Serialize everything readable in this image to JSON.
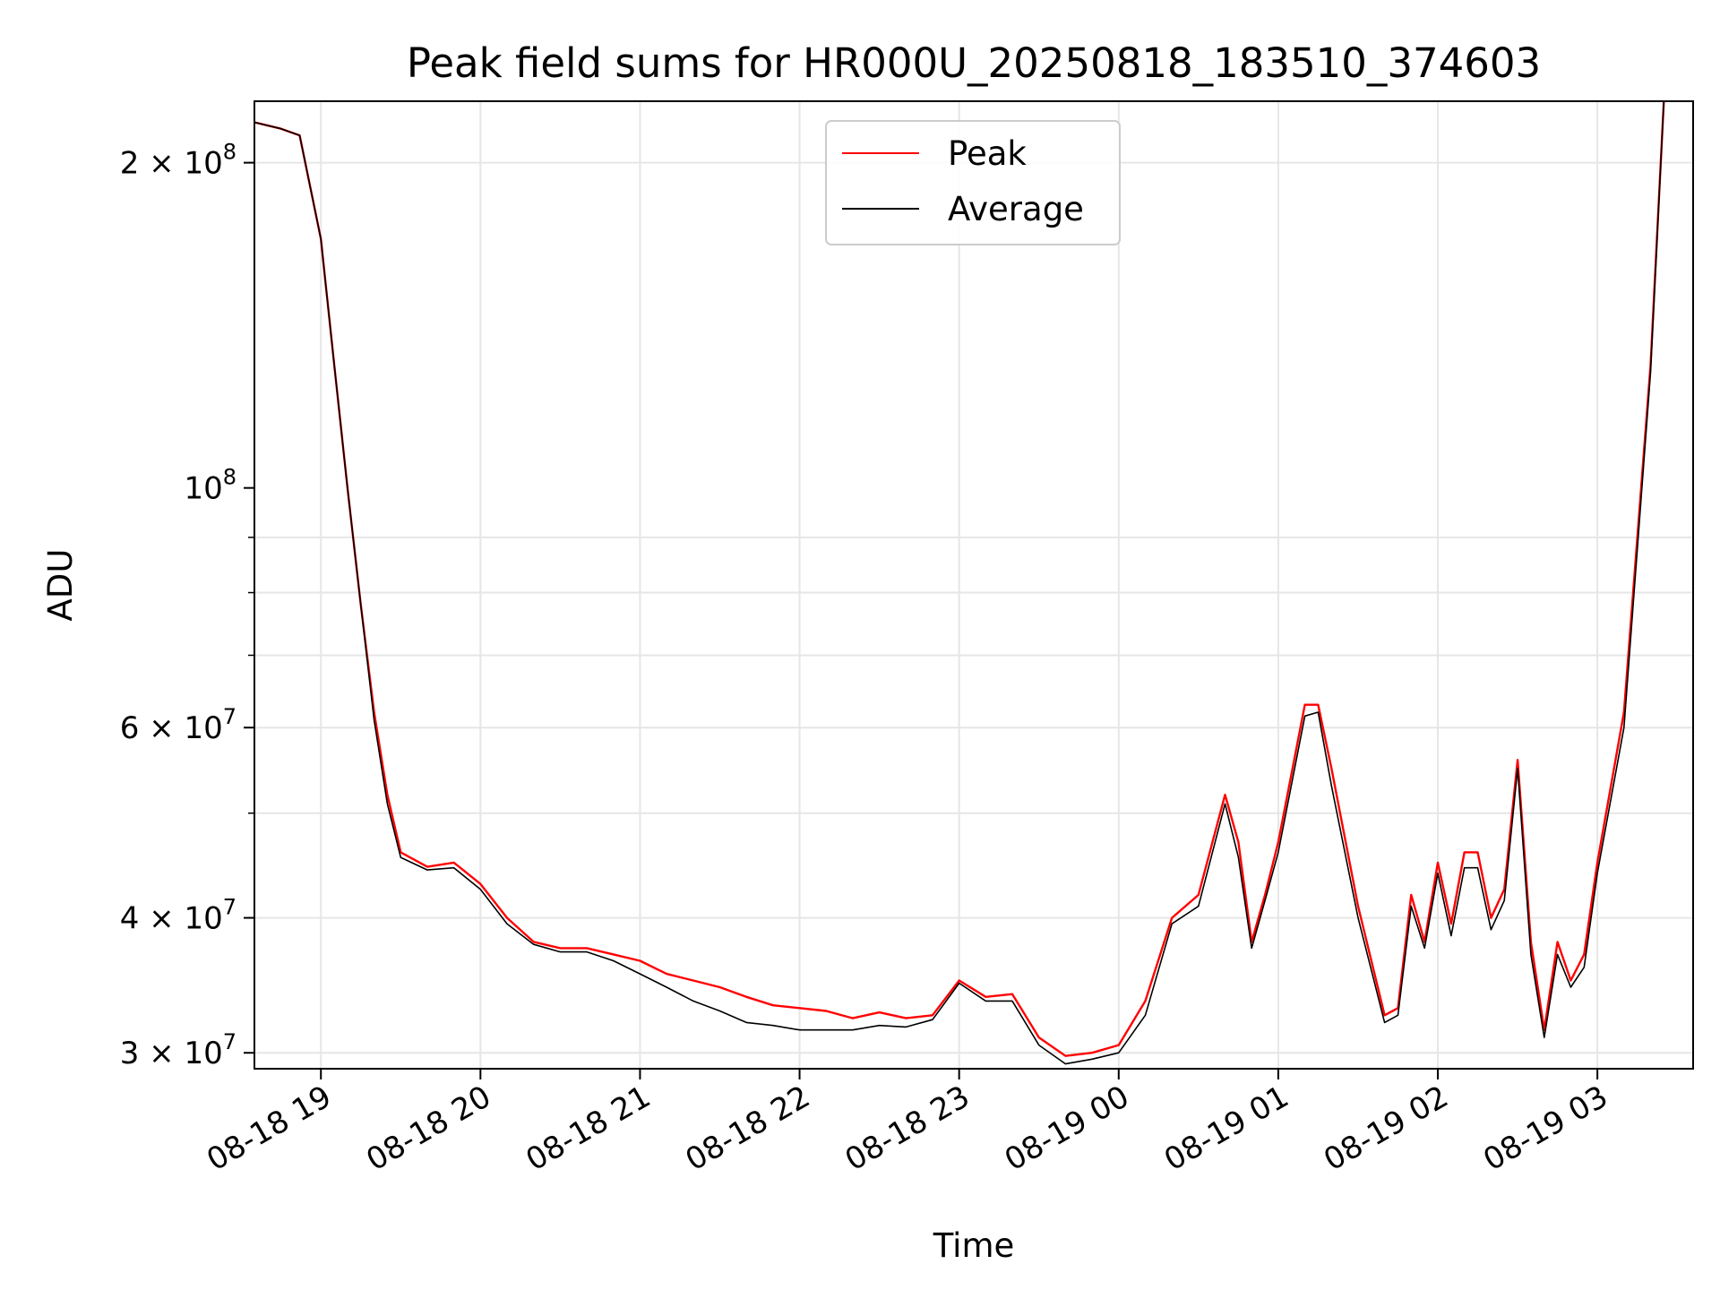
{
  "chart_data": {
    "type": "line",
    "title": "Peak field sums for HR000U_20250818_183510_374603",
    "xlabel": "Time",
    "ylabel": "ADU",
    "yscale": "log",
    "ylim": [
      29000000,
      228000000
    ],
    "xlim": [
      "08-18 18:35",
      "08-19 03:36"
    ],
    "grid": true,
    "legend_position": "upper center",
    "x_ticks": [
      "08-18 19",
      "08-18 20",
      "08-18 21",
      "08-18 22",
      "08-18 23",
      "08-19 00",
      "08-19 01",
      "08-19 02",
      "08-19 03"
    ],
    "y_ticks": [
      {
        "value": 30000000,
        "label": "3 × 10",
        "exp": "7"
      },
      {
        "value": 40000000,
        "label": "4 × 10",
        "exp": "7"
      },
      {
        "value": 60000000,
        "label": "6 × 10",
        "exp": "7"
      },
      {
        "value": 100000000,
        "label": "10",
        "exp": "8"
      },
      {
        "value": 200000000,
        "label": "2 × 10",
        "exp": "8"
      }
    ],
    "series": [
      {
        "name": "Peak",
        "color": "#ff0000",
        "x": [
          "18:35",
          "18:45",
          "18:52",
          "19:00",
          "19:05",
          "19:10",
          "19:15",
          "19:20",
          "19:25",
          "19:30",
          "19:40",
          "19:50",
          "20:00",
          "20:10",
          "20:20",
          "20:30",
          "20:40",
          "20:50",
          "21:00",
          "21:10",
          "21:20",
          "21:30",
          "21:40",
          "21:50",
          "22:00",
          "22:10",
          "22:20",
          "22:30",
          "22:40",
          "22:50",
          "23:00",
          "23:10",
          "23:20",
          "23:30",
          "23:40",
          "23:50",
          "00:00",
          "00:10",
          "00:20",
          "00:30",
          "00:40",
          "00:45",
          "00:50",
          "00:55",
          "01:00",
          "01:10",
          "01:15",
          "01:20",
          "01:30",
          "01:40",
          "01:45",
          "01:50",
          "01:55",
          "02:00",
          "02:05",
          "02:10",
          "02:15",
          "02:20",
          "02:25",
          "02:30",
          "02:35",
          "02:40",
          "02:45",
          "02:50",
          "02:55",
          "03:00",
          "03:10",
          "03:20",
          "03:25"
        ],
        "values": [
          218000000,
          215000000,
          212000000,
          170000000,
          130000000,
          100000000,
          78000000,
          62000000,
          52000000,
          46000000,
          44600000,
          45000000,
          43000000,
          40000000,
          38000000,
          37500000,
          37500000,
          37000000,
          36500000,
          35500000,
          35000000,
          34500000,
          33800000,
          33200000,
          33000000,
          32800000,
          32300000,
          32700000,
          32300000,
          32500000,
          35000000,
          33800000,
          34000000,
          31000000,
          29800000,
          30000000,
          30500000,
          33500000,
          40000000,
          42000000,
          52000000,
          47000000,
          38000000,
          42000000,
          47000000,
          63000000,
          63000000,
          55000000,
          41000000,
          32500000,
          33000000,
          42000000,
          38000000,
          45000000,
          39500000,
          46000000,
          46000000,
          40000000,
          42500000,
          56000000,
          38000000,
          31500000,
          38000000,
          35000000,
          37000000,
          45000000,
          62000000,
          130000000,
          228000000
        ]
      },
      {
        "name": "Average",
        "color": "#000000",
        "x": [
          "18:35",
          "18:45",
          "18:52",
          "19:00",
          "19:05",
          "19:10",
          "19:15",
          "19:20",
          "19:25",
          "19:30",
          "19:40",
          "19:50",
          "20:00",
          "20:10",
          "20:20",
          "20:30",
          "20:40",
          "20:50",
          "21:00",
          "21:10",
          "21:20",
          "21:30",
          "21:40",
          "21:50",
          "22:00",
          "22:10",
          "22:20",
          "22:30",
          "22:40",
          "22:50",
          "23:00",
          "23:10",
          "23:20",
          "23:30",
          "23:40",
          "23:50",
          "00:00",
          "00:10",
          "00:20",
          "00:30",
          "00:40",
          "00:45",
          "00:50",
          "00:55",
          "01:00",
          "01:10",
          "01:15",
          "01:20",
          "01:30",
          "01:40",
          "01:45",
          "01:50",
          "01:55",
          "02:00",
          "02:05",
          "02:10",
          "02:15",
          "02:20",
          "02:25",
          "02:30",
          "02:35",
          "02:40",
          "02:45",
          "02:50",
          "02:55",
          "03:00",
          "03:10",
          "03:20",
          "03:25"
        ],
        "values": [
          218000000,
          215000000,
          212000000,
          170000000,
          130000000,
          100000000,
          78000000,
          61000000,
          51000000,
          45500000,
          44300000,
          44500000,
          42500000,
          39500000,
          37800000,
          37200000,
          37200000,
          36500000,
          35500000,
          34500000,
          33500000,
          32800000,
          32000000,
          31800000,
          31500000,
          31500000,
          31500000,
          31800000,
          31700000,
          32200000,
          34800000,
          33500000,
          33500000,
          30500000,
          29300000,
          29600000,
          30000000,
          32500000,
          39500000,
          41000000,
          51000000,
          45500000,
          37500000,
          41500000,
          46000000,
          61500000,
          62000000,
          53000000,
          40000000,
          32000000,
          32500000,
          41000000,
          37500000,
          44000000,
          38500000,
          44500000,
          44500000,
          39000000,
          41500000,
          55000000,
          37000000,
          31000000,
          37000000,
          34500000,
          36000000,
          44000000,
          60000000,
          128000000,
          228000000
        ]
      }
    ]
  }
}
